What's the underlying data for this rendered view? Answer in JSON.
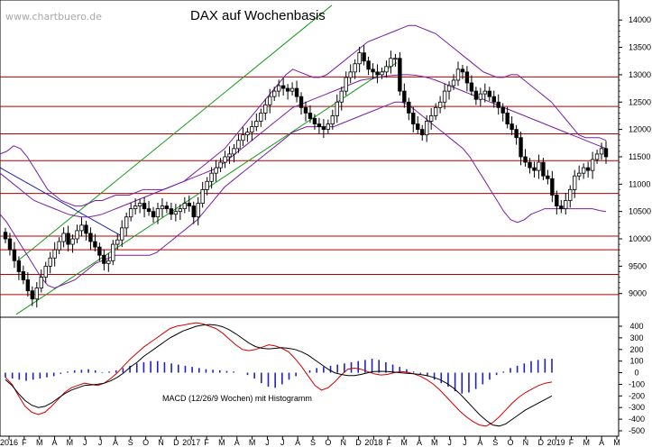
{
  "watermark": "www.chartbuero.de",
  "chart_data": [
    {
      "type": "candlestick",
      "title": "DAX auf Wochenbasis",
      "ylim": [
        8600,
        14300
      ],
      "y_ticks": [
        9000,
        9500,
        10000,
        10500,
        11000,
        11500,
        12000,
        12500,
        13000,
        13500,
        14000
      ],
      "x_labels": [
        "2016",
        "F",
        "M",
        "A",
        "M",
        "J",
        "J",
        "A",
        "S",
        "O",
        "N",
        "D",
        "2017",
        "F",
        "M",
        "A",
        "M",
        "J",
        "J",
        "A",
        "S",
        "O",
        "N",
        "D",
        "2018",
        "F",
        "M",
        "A",
        "M",
        "J",
        "J",
        "A",
        "S",
        "O",
        "N",
        "D",
        "2019",
        "F",
        "M",
        "A",
        "M"
      ],
      "horizontal_levels": [
        8980,
        9350,
        9800,
        10050,
        10830,
        11430,
        11920,
        12420,
        12960
      ],
      "closes": [
        10000,
        9800,
        9600,
        9400,
        9250,
        9050,
        8900,
        9100,
        9300,
        9500,
        9650,
        9800,
        9950,
        10100,
        9900,
        10000,
        10150,
        10250,
        10100,
        9950,
        9850,
        9700,
        9550,
        9600,
        9900,
        9980,
        10200,
        10400,
        10550,
        10600,
        10650,
        10550,
        10500,
        10400,
        10550,
        10600,
        10550,
        10450,
        10500,
        10550,
        10650,
        10600,
        10400,
        10650,
        10900,
        11050,
        11200,
        11300,
        11400,
        11500,
        11550,
        11650,
        11800,
        11900,
        11950,
        12050,
        12150,
        12300,
        12450,
        12600,
        12700,
        12800,
        12750,
        12700,
        12750,
        12600,
        12400,
        12300,
        12200,
        12100,
        12050,
        12000,
        12100,
        12250,
        12500,
        12700,
        12950,
        13050,
        13200,
        13400,
        13250,
        13100,
        13050,
        13000,
        13050,
        13150,
        13300,
        13300,
        12700,
        12500,
        12300,
        12100,
        12000,
        11900,
        12150,
        12250,
        12400,
        12500,
        12700,
        12800,
        12900,
        13100,
        13050,
        12850,
        12700,
        12550,
        12650,
        12700,
        12600,
        12500,
        12400,
        12300,
        12100,
        12000,
        11850,
        11500,
        11400,
        11300,
        11250,
        11400,
        11150,
        11100,
        10800,
        10600,
        10550,
        10700,
        10900,
        11150,
        11200,
        11300,
        11250,
        11450,
        11550,
        11650,
        11500
      ],
      "upper_band": [
        11550,
        11600,
        11700,
        11650,
        11500,
        11300,
        11100,
        10900,
        10800,
        10700,
        10650,
        10600,
        10600,
        10650,
        10700,
        10700,
        10750,
        10800,
        10800,
        10800,
        10850,
        10900,
        10900,
        10900,
        10900,
        10950,
        11000,
        11050,
        11150,
        11250,
        11350,
        11450,
        11550,
        11650,
        11800,
        11950,
        12100,
        12250,
        12400,
        12550,
        12700,
        12850,
        13000,
        13100,
        13050,
        13000,
        12950,
        12950,
        13000,
        13100,
        13200,
        13300,
        13400,
        13500,
        13600,
        13650,
        13700,
        13750,
        13800,
        13850,
        13900,
        13900,
        13850,
        13800,
        13750,
        13650,
        13550,
        13450,
        13350,
        13250,
        13150,
        13050,
        13000,
        12950,
        12950,
        13000,
        13000,
        12900,
        12800,
        12700,
        12600,
        12500,
        12350,
        12200,
        12050,
        11900,
        11850,
        11850,
        11850,
        11800
      ],
      "lower_band": [
        10450,
        10300,
        10100,
        9900,
        9700,
        9500,
        9300,
        9150,
        9100,
        9150,
        9200,
        9250,
        9350,
        9450,
        9550,
        9600,
        9650,
        9700,
        9700,
        9700,
        9700,
        9700,
        9700,
        9750,
        9850,
        9950,
        10050,
        10150,
        10250,
        10350,
        10500,
        10650,
        10800,
        10950,
        11050,
        11150,
        11250,
        11350,
        11450,
        11550,
        11650,
        11750,
        11850,
        11950,
        12000,
        12050,
        12050,
        12050,
        12050,
        12050,
        12100,
        12150,
        12200,
        12250,
        12300,
        12350,
        12400,
        12450,
        12500,
        12500,
        12450,
        12350,
        12250,
        12150,
        12050,
        11950,
        11850,
        11750,
        11650,
        11500,
        11300,
        11100,
        10900,
        10700,
        10500,
        10350,
        10300,
        10350,
        10450,
        10500,
        10550,
        10550,
        10550,
        10550,
        10550,
        10550,
        10550,
        10550,
        10520,
        10500
      ],
      "ma_200": [
        11200,
        11100,
        11000,
        10900,
        10800,
        10700,
        10650,
        10600,
        10550,
        10500,
        10450,
        10420,
        10400,
        10400,
        10420,
        10450,
        10500,
        10550,
        10600,
        10650,
        10700,
        10750,
        10800,
        10850,
        10900,
        10950,
        11000,
        11050,
        11100,
        11150,
        11200,
        11250,
        11300,
        11400,
        11500,
        11600,
        11700,
        11800,
        11900,
        12000,
        12100,
        12200,
        12300,
        12400,
        12450,
        12500,
        12550,
        12600,
        12650,
        12700,
        12750,
        12800,
        12850,
        12900,
        12920,
        12940,
        12960,
        12980,
        12990,
        13000,
        13000,
        12990,
        12970,
        12940,
        12900,
        12850,
        12800,
        12750,
        12700,
        12650,
        12600,
        12550,
        12500,
        12450,
        12400,
        12350,
        12300,
        12250,
        12200,
        12150,
        12100,
        12050,
        12000,
        11950,
        11900,
        11850,
        11800,
        11750,
        11700,
        11650
      ]
    },
    {
      "type": "line",
      "title": "MACD (12/26/9 Wochen) mit Histogramm",
      "ylim": [
        -500,
        400
      ],
      "y_ticks": [
        400,
        300,
        200,
        100,
        0,
        -100,
        -200,
        -300,
        -400,
        -500
      ],
      "x_labels": [
        "2016",
        "F",
        "M",
        "A",
        "M",
        "J",
        "J",
        "A",
        "S",
        "O",
        "N",
        "D",
        "2017",
        "F",
        "M",
        "A",
        "M",
        "J",
        "J",
        "A",
        "S",
        "O",
        "N",
        "D",
        "2018",
        "F",
        "M",
        "A",
        "M",
        "J",
        "J",
        "A",
        "S",
        "O",
        "N",
        "D",
        "2019",
        "F",
        "M",
        "A",
        "M"
      ],
      "series": [
        {
          "values": [
            -60,
            -110,
            -180,
            -240,
            -280,
            -300,
            -290,
            -260,
            -220,
            -180,
            -150,
            -130,
            -110,
            -105,
            -100,
            -90,
            -70,
            -40,
            0,
            50,
            90,
            140,
            180,
            220,
            260,
            300,
            330,
            360,
            380,
            400,
            410,
            415,
            410,
            395,
            370,
            335,
            295,
            255,
            225,
            210,
            205,
            210,
            215,
            210,
            200,
            180,
            150,
            110,
            70,
            30,
            0,
            -15,
            -25,
            -25,
            -15,
            0,
            10,
            12,
            10,
            5,
            0,
            -5,
            -10,
            -15,
            -25,
            -40,
            -60,
            -90,
            -130,
            -180,
            -240,
            -300,
            -360,
            -410,
            -450,
            -460,
            -440,
            -400,
            -360,
            -320,
            -290,
            -260,
            -230,
            -200
          ]
        },
        {
          "values": [
            -40,
            -100,
            -200,
            -290,
            -340,
            -360,
            -340,
            -290,
            -230,
            -170,
            -130,
            -110,
            -90,
            -100,
            -110,
            -90,
            -50,
            0,
            60,
            120,
            170,
            220,
            260,
            300,
            340,
            380,
            400,
            410,
            420,
            430,
            420,
            400,
            380,
            340,
            290,
            240,
            200,
            190,
            200,
            220,
            240,
            230,
            210,
            180,
            120,
            50,
            -30,
            -110,
            -150,
            -130,
            -80,
            -20,
            30,
            40,
            30,
            10,
            -10,
            -20,
            -15,
            0,
            10,
            5,
            -10,
            -30,
            -60,
            -100,
            -150,
            -210,
            -270,
            -330,
            -380,
            -420,
            -450,
            -460,
            -430,
            -380,
            -320,
            -260,
            -210,
            -170,
            -140,
            -110,
            -90,
            -80
          ]
        },
        {
          "values": [
            -40,
            -50,
            -60,
            -70,
            -60,
            -50,
            -40,
            -30,
            -10,
            10,
            20,
            25,
            30,
            20,
            5,
            10,
            20,
            40,
            60,
            80,
            90,
            100,
            100,
            90,
            80,
            70,
            60,
            50,
            40,
            30,
            25,
            20,
            15,
            10,
            0,
            -20,
            -50,
            -90,
            -120,
            -130,
            -100,
            -60,
            -30,
            0,
            20,
            40,
            50,
            60,
            70,
            80,
            90,
            100,
            110,
            120,
            110,
            90,
            70,
            50,
            30,
            10,
            -10,
            -30,
            -60,
            -90,
            -120,
            -160,
            -180,
            -170,
            -140,
            -100,
            -60,
            -20,
            10,
            40,
            60,
            80,
            100,
            110,
            120,
            120
          ]
        }
      ]
    }
  ]
}
